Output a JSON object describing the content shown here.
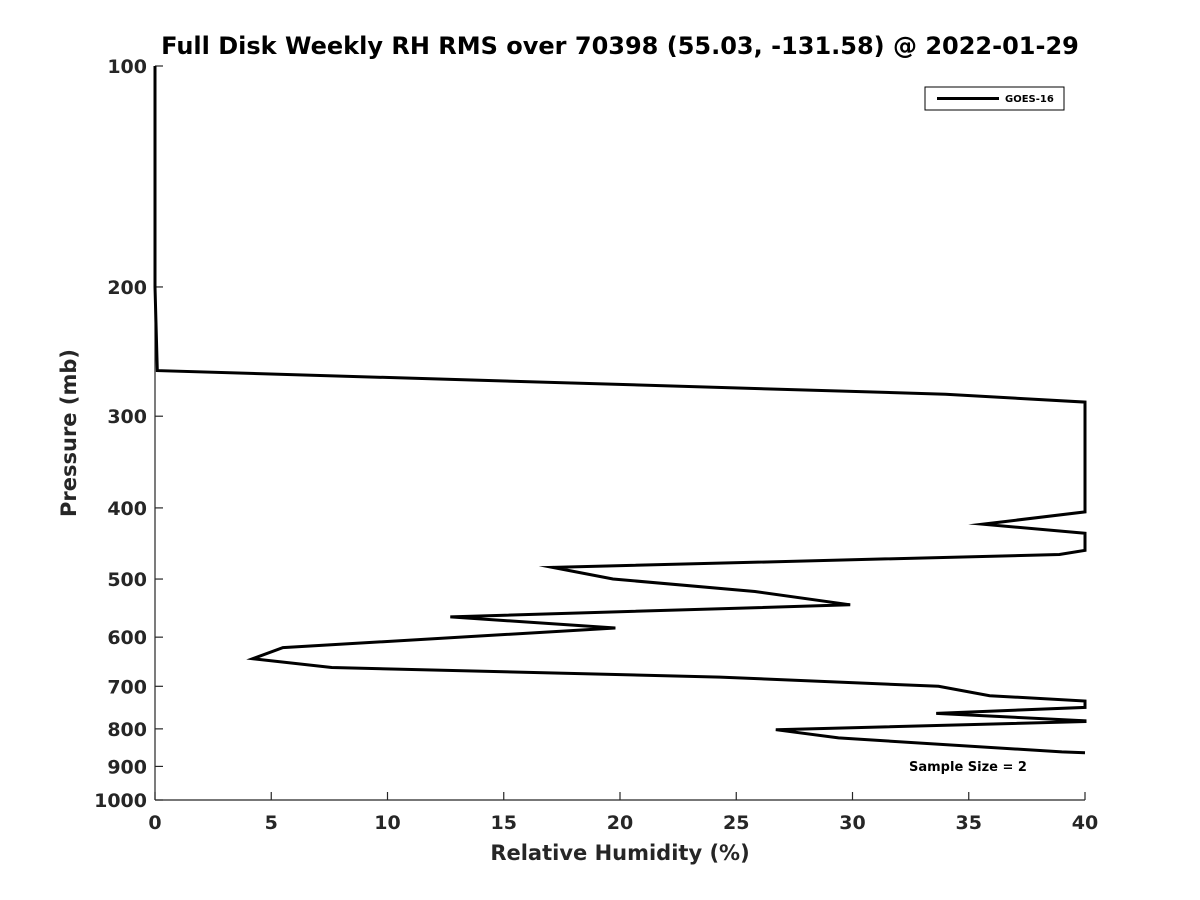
{
  "chart_data": {
    "type": "line",
    "title": "Full Disk Weekly RH RMS over 70398 (55.03, -131.58) @ 2022-01-29",
    "xlabel": "Relative Humidity (%)",
    "ylabel": "Pressure (mb)",
    "xlim": [
      0,
      40
    ],
    "ylim": [
      100,
      1000
    ],
    "y_scale": "log",
    "y_reversed": true,
    "grid": false,
    "legend_position": "top-right",
    "x_ticks": [
      "0",
      "5",
      "10",
      "15",
      "20",
      "25",
      "30",
      "35",
      "40"
    ],
    "y_ticks": [
      "100",
      "200",
      "300",
      "400",
      "500",
      "600",
      "700",
      "800",
      "900",
      "1000"
    ],
    "series": [
      {
        "name": "GOES-16",
        "color": "#000000",
        "points": [
          {
            "x": 0.0,
            "p": 100
          },
          {
            "x": 0.0,
            "p": 150
          },
          {
            "x": 0.0,
            "p": 200
          },
          {
            "x": 0.1,
            "p": 260
          },
          {
            "x": 34.0,
            "p": 280
          },
          {
            "x": 40.0,
            "p": 287
          },
          {
            "x": 40.0,
            "p": 405
          },
          {
            "x": 35.6,
            "p": 421
          },
          {
            "x": 40.0,
            "p": 433
          },
          {
            "x": 40.0,
            "p": 457
          },
          {
            "x": 38.9,
            "p": 463
          },
          {
            "x": 17.1,
            "p": 482
          },
          {
            "x": 19.7,
            "p": 500
          },
          {
            "x": 25.8,
            "p": 520
          },
          {
            "x": 29.9,
            "p": 542
          },
          {
            "x": 12.7,
            "p": 563
          },
          {
            "x": 19.8,
            "p": 583
          },
          {
            "x": 5.5,
            "p": 620
          },
          {
            "x": 4.2,
            "p": 642
          },
          {
            "x": 7.6,
            "p": 660
          },
          {
            "x": 24.3,
            "p": 680
          },
          {
            "x": 33.7,
            "p": 700
          },
          {
            "x": 35.9,
            "p": 721
          },
          {
            "x": 40.0,
            "p": 733
          },
          {
            "x": 40.0,
            "p": 748
          },
          {
            "x": 33.6,
            "p": 762
          },
          {
            "x": 40.0,
            "p": 780
          },
          {
            "x": 40.0,
            "p": 782
          },
          {
            "x": 26.7,
            "p": 802
          },
          {
            "x": 29.4,
            "p": 823
          },
          {
            "x": 39.0,
            "p": 860
          },
          {
            "x": 40.0,
            "p": 862
          }
        ]
      }
    ],
    "legend": {
      "entries": [
        "GOES-16"
      ]
    },
    "annotation": "Sample Size = 2"
  }
}
